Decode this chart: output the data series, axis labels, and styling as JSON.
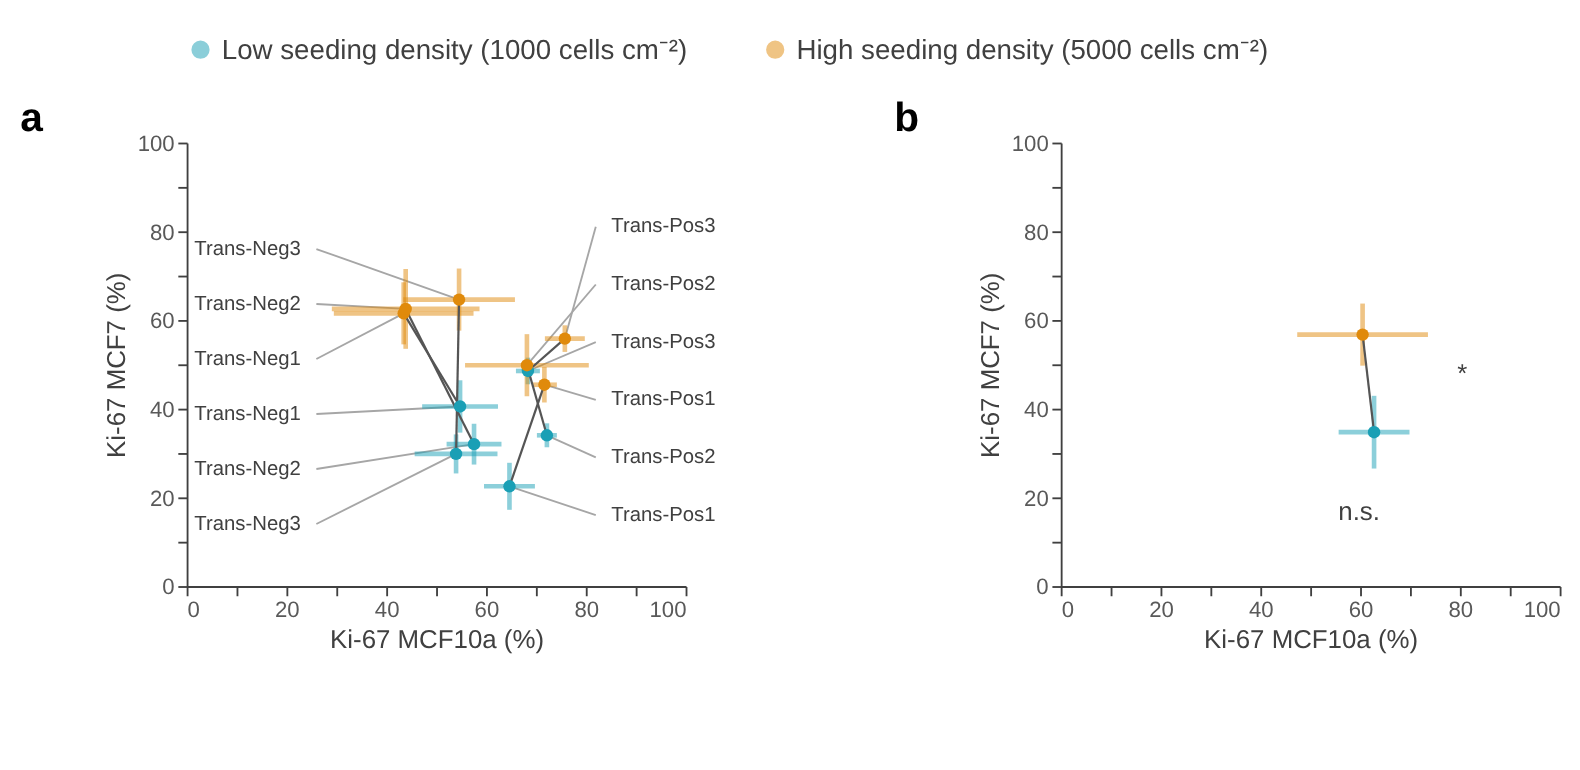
{
  "chart_data": [
    {
      "type": "scatter",
      "title": "a",
      "xlabel": "Ki-67 MCF10a (%)",
      "ylabel": "Ki-67 MCF7 (%)",
      "marker": "circle",
      "grid": false,
      "legend": "top",
      "xlim": [
        0,
        100
      ],
      "ylim": [
        0,
        100
      ],
      "xticks": [
        0,
        {
          "value": 10,
          "label": null
        },
        20,
        {
          "value": 30,
          "label": null
        },
        40,
        {
          "value": 50,
          "label": null
        },
        60,
        {
          "value": 70,
          "label": null
        },
        80,
        {
          "value": 90,
          "label": null
        },
        100
      ],
      "yticks": [
        0,
        {
          "value": 10,
          "label": null
        },
        20,
        {
          "value": 30,
          "label": null
        },
        40,
        {
          "value": 50,
          "label": null
        },
        60,
        {
          "value": 70,
          "label": null
        },
        80,
        {
          "value": 90,
          "label": null
        },
        100
      ],
      "series": [
        {
          "name": "Low seeding density (1000 cells cm⁻²)",
          "color": "#1a9fb5",
          "x": [
            54.8,
            57.6,
            54.0,
            64.7,
            72.2,
            68.4
          ],
          "values": [
            40.5,
            32.0,
            29.8,
            22.5,
            34.0,
            48.5
          ],
          "xerrors": [
            7.6,
            5.5,
            8.3,
            5.1,
            2.0,
            2.4
          ],
          "errors": [
            5.9,
            4.6,
            4.4,
            5.3,
            2.7,
            3.0
          ]
        },
        {
          "name": "High seeding density (5000 cells cm⁻²)",
          "color": "#e08a0b",
          "x": [
            43.5,
            43.9,
            54.6,
            71.7,
            68.2,
            75.8
          ],
          "values": [
            61.5,
            62.5,
            64.6,
            45.4,
            49.8,
            55.8
          ],
          "xerrors": [
            14.0,
            14.8,
            11.2,
            2.5,
            12.4,
            4.0
          ],
          "errors": [
            7.0,
            9.0,
            7.0,
            4.0,
            7.0,
            3.0
          ]
        },
        {
          "type": "line",
          "marker": "none",
          "color": "#555555",
          "x": [
            54.8,
            43.5
          ],
          "values": [
            40.5,
            61.5
          ]
        },
        {
          "type": "line",
          "marker": "none",
          "color": "#555555",
          "x": [
            57.6,
            43.9
          ],
          "values": [
            32.0,
            62.5
          ]
        },
        {
          "type": "line",
          "marker": "none",
          "color": "#555555",
          "x": [
            54.0,
            54.6
          ],
          "values": [
            29.8,
            64.6
          ]
        },
        {
          "type": "line",
          "marker": "none",
          "color": "#555555",
          "x": [
            64.7,
            71.7
          ],
          "values": [
            22.5,
            45.4
          ]
        },
        {
          "type": "line",
          "marker": "none",
          "color": "#555555",
          "x": [
            72.2,
            68.2
          ],
          "values": [
            34.0,
            49.8
          ]
        },
        {
          "type": "line",
          "marker": "none",
          "color": "#555555",
          "x": [
            68.4,
            75.8
          ],
          "values": [
            48.5,
            55.8
          ]
        }
      ],
      "annotations": [
        {
          "text": "Trans-Neg1",
          "x": 54.8,
          "y": 40.5
        },
        {
          "text": "Trans-Neg2",
          "x": 57.6,
          "y": 32.0
        },
        {
          "text": "Trans-Neg3",
          "x": 54.0,
          "y": 29.8
        },
        {
          "text": "Trans-Pos1",
          "x": 64.7,
          "y": 22.5
        },
        {
          "text": "Trans-Pos2",
          "x": 72.2,
          "y": 34.0
        },
        {
          "text": "Trans-Pos3",
          "x": 68.4,
          "y": 48.5
        },
        {
          "text": "Trans-Neg1",
          "x": 43.5,
          "y": 61.5
        },
        {
          "text": "Trans-Neg2",
          "x": 43.9,
          "y": 62.5
        },
        {
          "text": "Trans-Neg3",
          "x": 54.6,
          "y": 64.6
        },
        {
          "text": "Trans-Pos1",
          "x": 71.7,
          "y": 45.4
        },
        {
          "text": "Trans-Pos2",
          "x": 68.2,
          "y": 49.8
        },
        {
          "text": "Trans-Pos3",
          "x": 75.8,
          "y": 55.8
        }
      ]
    },
    {
      "type": "scatter",
      "title": "b",
      "xlabel": "Ki-67 MCF10a (%)",
      "ylabel": "Ki-67 MCF7 (%)",
      "marker": "circle",
      "grid": false,
      "legend": "top",
      "xlim": [
        0,
        100
      ],
      "ylim": [
        0,
        100
      ],
      "xticks": [
        0,
        {
          "value": 10,
          "label": null
        },
        20,
        {
          "value": 30,
          "label": null
        },
        40,
        {
          "value": 50,
          "label": null
        },
        60,
        {
          "value": 70,
          "label": null
        },
        80,
        {
          "value": 90,
          "label": null
        },
        100
      ],
      "yticks": [
        0,
        {
          "value": 10,
          "label": null
        },
        20,
        {
          "value": 30,
          "label": null
        },
        40,
        {
          "value": 50,
          "label": null
        },
        60,
        {
          "value": 70,
          "label": null
        },
        80,
        {
          "value": 90,
          "label": null
        },
        100
      ],
      "series": [
        {
          "name": "Low seeding density (1000 cells cm⁻²)",
          "color": "#1a9fb5",
          "x": [
            62.8
          ],
          "values": [
            34.7
          ],
          "xerrors": [
            7.1
          ],
          "errors": [
            8.2
          ]
        },
        {
          "name": "High seeding density (5000 cells cm⁻²)",
          "color": "#e08a0b",
          "x": [
            60.5
          ],
          "values": [
            56.7
          ],
          "xerrors": [
            13.1
          ],
          "errors": [
            7.0
          ]
        },
        {
          "type": "line",
          "marker": "none",
          "color": "#555555",
          "x": [
            62.8,
            60.5
          ],
          "values": [
            34.7,
            56.7
          ]
        }
      ],
      "annotations": [
        "n.s.",
        "*"
      ]
    }
  ]
}
